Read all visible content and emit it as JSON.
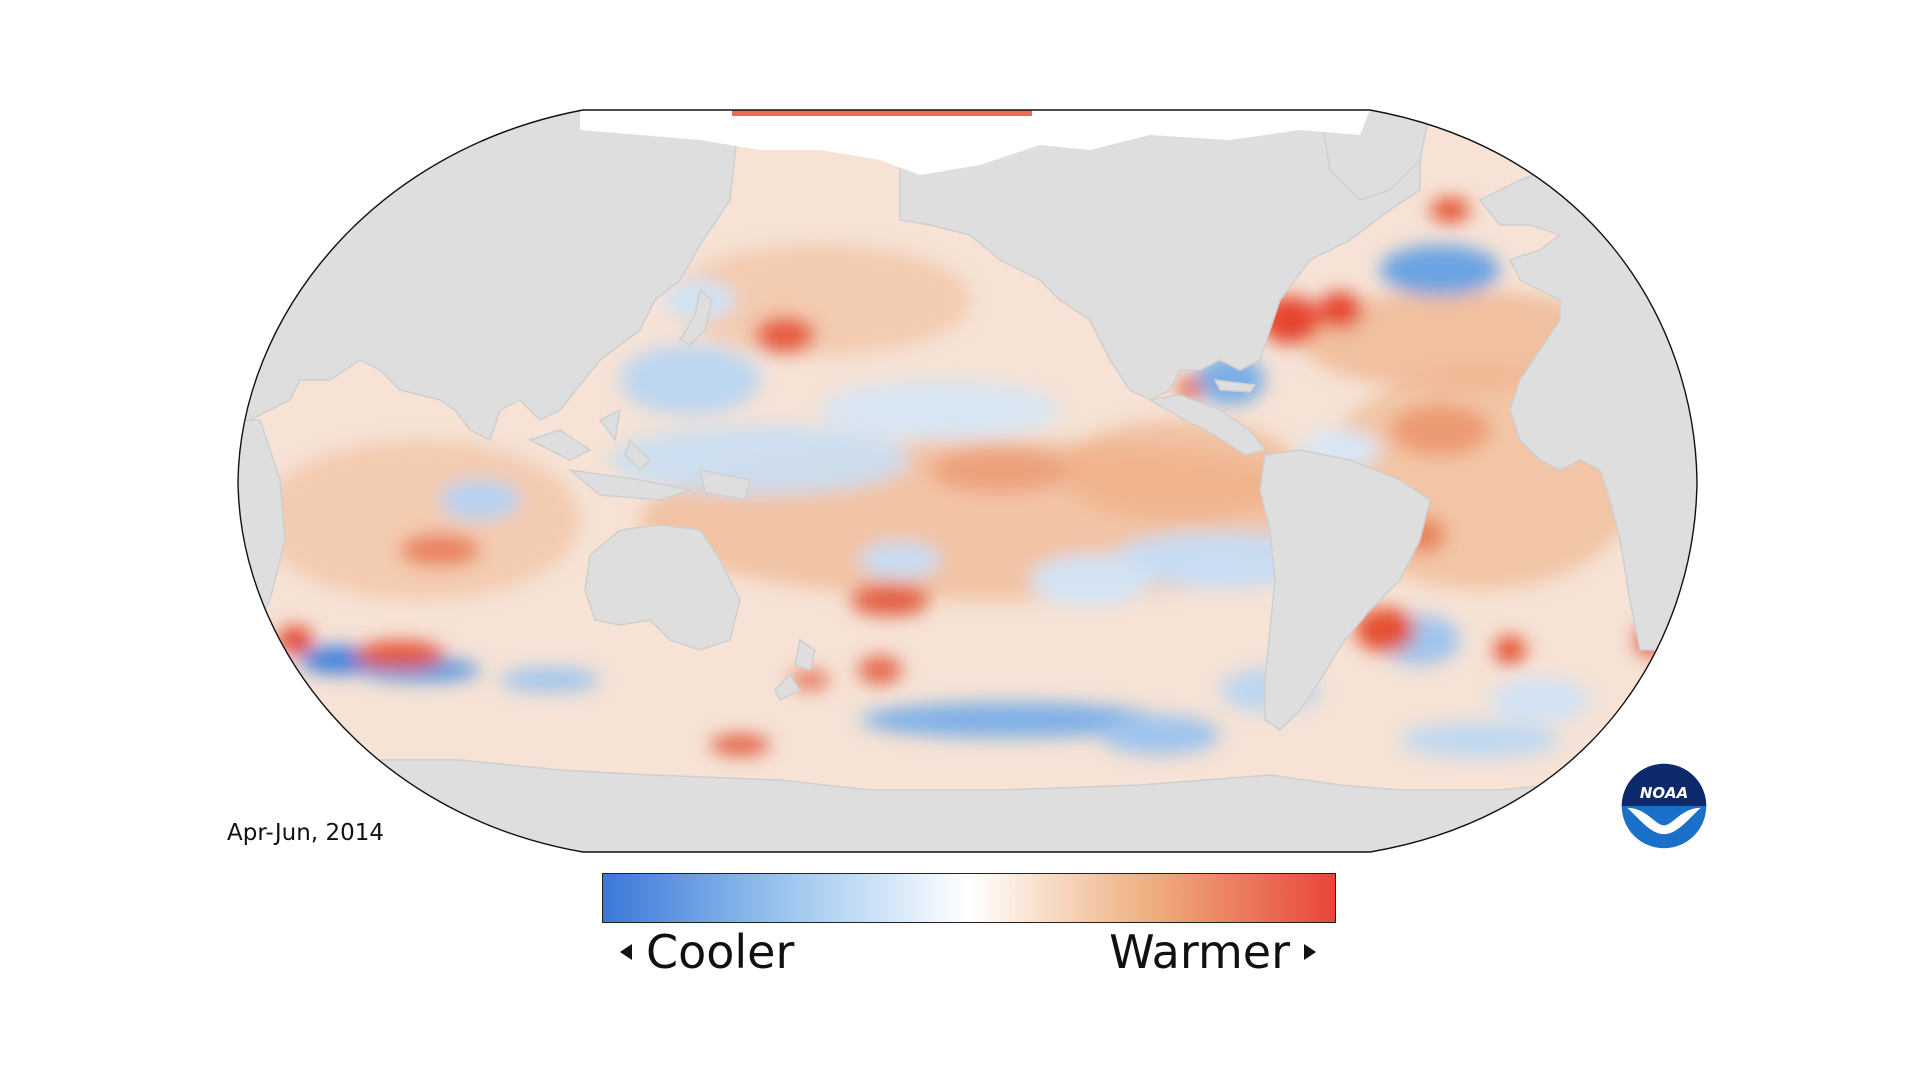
{
  "period": "Apr-Jun, 2014",
  "legend": {
    "low_label": "Cooler",
    "high_label": "Warmer",
    "colors": [
      "#3a78d8",
      "#9cc6ee",
      "#ffffff",
      "#eeae7e",
      "#e8453a"
    ]
  },
  "logo": {
    "text": "NOAA",
    "icon": "noaa-logo-icon"
  },
  "map": {
    "projection": "robinson-pacific-centered",
    "land_color": "#dedede",
    "ice_color": "#ffffff",
    "border_color": "#111111"
  }
}
